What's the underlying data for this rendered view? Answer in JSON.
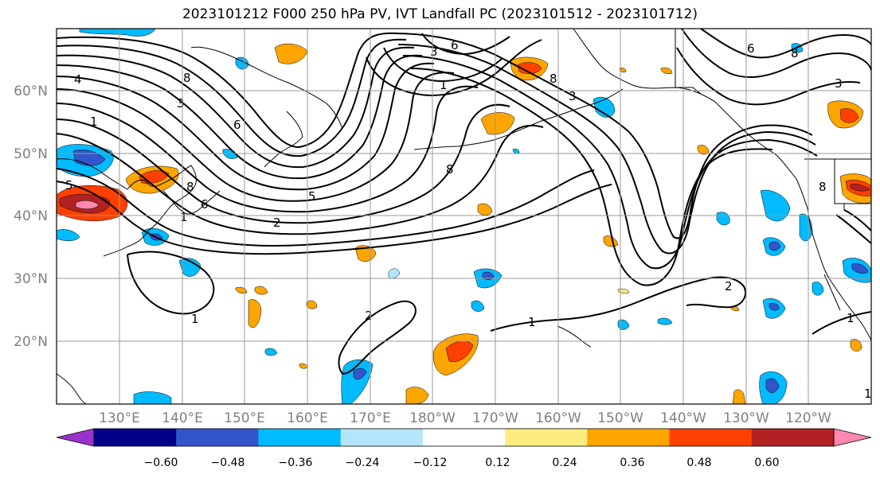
{
  "title": "2023101212 F000 250 hPa PV, IVT Landfall PC (2023101512 - 2023101712)",
  "axes": {
    "lat_labels": [
      "60°N",
      "50°N",
      "40°N",
      "30°N",
      "20°N"
    ],
    "lon_labels": [
      "130°E",
      "140°E",
      "150°E",
      "160°E",
      "170°E",
      "180°W",
      "170°W",
      "160°W",
      "150°W",
      "140°W",
      "130°W",
      "120°W"
    ]
  },
  "contour_labels": [
    "4",
    "8",
    "3",
    "1",
    "6",
    "8",
    "5",
    "6",
    "2",
    "1",
    "1",
    "2",
    "5",
    "1",
    "8",
    "3",
    "6",
    "8",
    "3",
    "1",
    "8",
    "2",
    "1",
    "1",
    "3",
    "6",
    "8"
  ],
  "colorbar": {
    "tick_labels": [
      "−0.60",
      "−0.48",
      "−0.36",
      "−0.24",
      "−0.12",
      "0.12",
      "0.24",
      "0.36",
      "0.48",
      "0.60"
    ],
    "colors": [
      "#9933cc",
      "#000088",
      "#3355cc",
      "#00bbff",
      "#b3e5ff",
      "#ffffff",
      "#ffeb80",
      "#ffa500",
      "#ff4000",
      "#b22222",
      "#ff88b0"
    ]
  },
  "colors": {
    "neg_strong": "#3355cc",
    "neg_mid": "#00bbff",
    "neg_light": "#b3e5ff",
    "pos_light": "#ffeb80",
    "pos_mid": "#ffa500",
    "pos_strong": "#ff4000",
    "pos_deep": "#b22222",
    "pos_pink": "#ff88b0",
    "grid": "#999999",
    "frame": "#000000"
  }
}
